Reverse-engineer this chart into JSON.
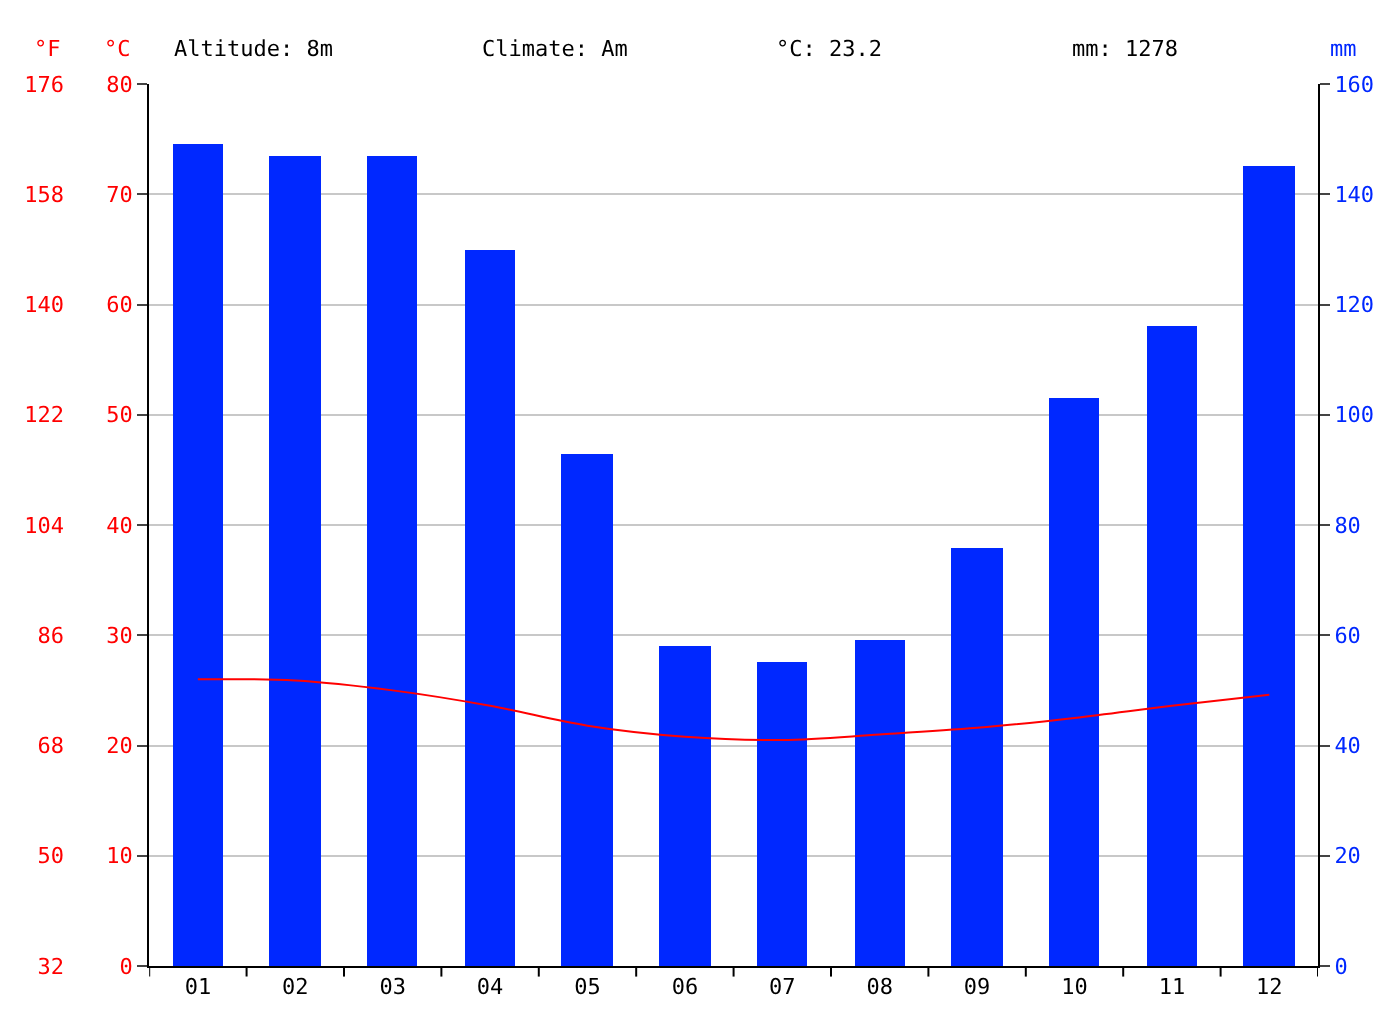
{
  "chart_data": {
    "type": "bar",
    "annotations": [
      "Altitude: 8m",
      "Climate: Am",
      "°C: 23.2",
      "mm: 1278"
    ],
    "ylabel": "°C",
    "y2label": "mm",
    "y3label": "°F",
    "categories": [
      "01",
      "02",
      "03",
      "04",
      "05",
      "06",
      "07",
      "08",
      "09",
      "10",
      "11",
      "12"
    ],
    "series": [
      {
        "axis": "y2",
        "color": "#0028ff",
        "values": [
          149,
          147,
          147,
          130,
          93,
          58,
          55,
          59,
          76,
          103,
          116,
          145
        ]
      },
      {
        "type": "line",
        "axis": "y",
        "color": "#ff0000",
        "values": [
          26.0,
          25.9,
          25.0,
          23.6,
          21.8,
          20.8,
          20.5,
          21.0,
          21.6,
          22.5,
          23.6,
          24.6
        ]
      }
    ],
    "ylim": [
      0,
      80
    ],
    "yticks": [
      0,
      10,
      20,
      30,
      40,
      50,
      60,
      70,
      80
    ],
    "y2lim": [
      0,
      160
    ],
    "y2ticks": [
      0,
      20,
      40,
      60,
      80,
      100,
      120,
      140,
      160
    ],
    "y3lim": [
      32,
      176
    ],
    "y3ticks": [
      32,
      50,
      68,
      86,
      104,
      122,
      140,
      158,
      176
    ],
    "grid": "y"
  }
}
